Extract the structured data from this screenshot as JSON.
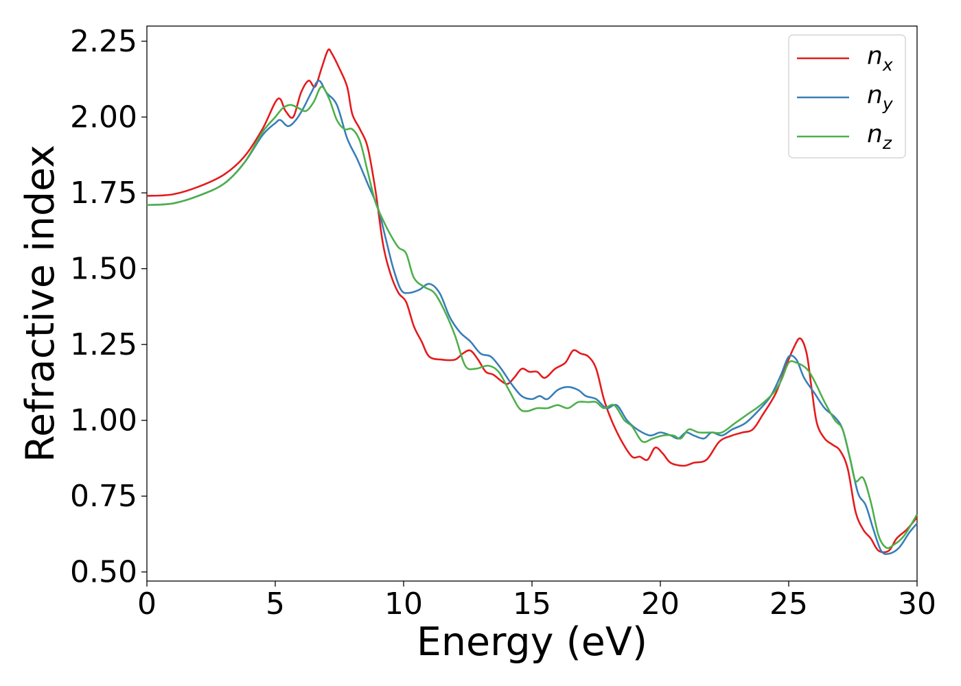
{
  "chart_data": {
    "type": "line",
    "xlabel": "Energy (eV)",
    "ylabel": "Refractive index",
    "xlim": [
      0,
      30
    ],
    "ylim": [
      0.47,
      2.3
    ],
    "xticks": [
      "0",
      "5",
      "10",
      "15",
      "20",
      "25",
      "30"
    ],
    "yticks": [
      "0.50",
      "0.75",
      "1.00",
      "1.25",
      "1.50",
      "1.75",
      "2.00",
      "2.25"
    ],
    "legend_position": "top-right",
    "grid": false,
    "series": [
      {
        "name": "n_x",
        "label_main": "n",
        "label_sub": "x",
        "color": "#e41a1c",
        "points": [
          [
            0,
            1.74
          ],
          [
            1,
            1.745
          ],
          [
            2,
            1.77
          ],
          [
            3,
            1.81
          ],
          [
            3.8,
            1.87
          ],
          [
            4.5,
            1.96
          ],
          [
            5.1,
            2.06
          ],
          [
            5.4,
            2.02
          ],
          [
            5.7,
            2.0
          ],
          [
            6.0,
            2.08
          ],
          [
            6.3,
            2.12
          ],
          [
            6.55,
            2.1
          ],
          [
            6.8,
            2.16
          ],
          [
            7.05,
            2.22
          ],
          [
            7.2,
            2.21
          ],
          [
            7.5,
            2.16
          ],
          [
            7.8,
            2.1
          ],
          [
            8.0,
            2.01
          ],
          [
            8.3,
            1.96
          ],
          [
            8.6,
            1.9
          ],
          [
            8.9,
            1.76
          ],
          [
            9.2,
            1.58
          ],
          [
            9.5,
            1.48
          ],
          [
            9.8,
            1.42
          ],
          [
            10.1,
            1.39
          ],
          [
            10.4,
            1.31
          ],
          [
            10.7,
            1.26
          ],
          [
            11.0,
            1.21
          ],
          [
            11.5,
            1.2
          ],
          [
            12.0,
            1.2
          ],
          [
            12.3,
            1.22
          ],
          [
            12.6,
            1.23
          ],
          [
            12.9,
            1.2
          ],
          [
            13.2,
            1.16
          ],
          [
            13.5,
            1.15
          ],
          [
            14.0,
            1.12
          ],
          [
            14.3,
            1.14
          ],
          [
            14.6,
            1.17
          ],
          [
            14.9,
            1.16
          ],
          [
            15.2,
            1.16
          ],
          [
            15.5,
            1.14
          ],
          [
            15.9,
            1.17
          ],
          [
            16.3,
            1.19
          ],
          [
            16.6,
            1.23
          ],
          [
            16.9,
            1.22
          ],
          [
            17.2,
            1.21
          ],
          [
            17.5,
            1.17
          ],
          [
            17.8,
            1.07
          ],
          [
            18.1,
            1.0
          ],
          [
            18.5,
            0.93
          ],
          [
            18.9,
            0.88
          ],
          [
            19.2,
            0.88
          ],
          [
            19.5,
            0.87
          ],
          [
            19.8,
            0.91
          ],
          [
            20.1,
            0.89
          ],
          [
            20.4,
            0.86
          ],
          [
            20.9,
            0.85
          ],
          [
            21.3,
            0.86
          ],
          [
            21.8,
            0.87
          ],
          [
            22.3,
            0.93
          ],
          [
            22.8,
            0.95
          ],
          [
            23.2,
            0.96
          ],
          [
            23.6,
            0.97
          ],
          [
            24.0,
            1.02
          ],
          [
            24.5,
            1.09
          ],
          [
            24.9,
            1.18
          ],
          [
            25.2,
            1.24
          ],
          [
            25.45,
            1.27
          ],
          [
            25.7,
            1.22
          ],
          [
            25.9,
            1.1
          ],
          [
            26.1,
            0.99
          ],
          [
            26.4,
            0.94
          ],
          [
            26.7,
            0.92
          ],
          [
            27.0,
            0.9
          ],
          [
            27.3,
            0.84
          ],
          [
            27.6,
            0.7
          ],
          [
            27.9,
            0.64
          ],
          [
            28.2,
            0.61
          ],
          [
            28.5,
            0.57
          ],
          [
            28.9,
            0.57
          ],
          [
            29.2,
            0.61
          ],
          [
            29.6,
            0.64
          ],
          [
            30.0,
            0.68
          ]
        ]
      },
      {
        "name": "n_y",
        "label_main": "n",
        "label_sub": "y",
        "color": "#377eb8",
        "points": [
          [
            0,
            1.71
          ],
          [
            1,
            1.715
          ],
          [
            2,
            1.74
          ],
          [
            3,
            1.78
          ],
          [
            3.8,
            1.85
          ],
          [
            4.5,
            1.94
          ],
          [
            5.0,
            1.98
          ],
          [
            5.2,
            1.99
          ],
          [
            5.5,
            1.97
          ],
          [
            5.8,
            1.99
          ],
          [
            6.1,
            2.03
          ],
          [
            6.4,
            2.08
          ],
          [
            6.7,
            2.12
          ],
          [
            7.0,
            2.08
          ],
          [
            7.4,
            2.04
          ],
          [
            7.8,
            1.93
          ],
          [
            8.2,
            1.86
          ],
          [
            8.6,
            1.78
          ],
          [
            9.0,
            1.7
          ],
          [
            9.3,
            1.6
          ],
          [
            9.6,
            1.5
          ],
          [
            9.9,
            1.43
          ],
          [
            10.2,
            1.42
          ],
          [
            10.6,
            1.43
          ],
          [
            11.0,
            1.45
          ],
          [
            11.4,
            1.42
          ],
          [
            11.8,
            1.34
          ],
          [
            12.2,
            1.29
          ],
          [
            12.6,
            1.26
          ],
          [
            13.0,
            1.22
          ],
          [
            13.4,
            1.21
          ],
          [
            13.8,
            1.17
          ],
          [
            14.2,
            1.12
          ],
          [
            14.6,
            1.08
          ],
          [
            15.0,
            1.07
          ],
          [
            15.3,
            1.08
          ],
          [
            15.6,
            1.07
          ],
          [
            16.0,
            1.1
          ],
          [
            16.4,
            1.11
          ],
          [
            16.8,
            1.1
          ],
          [
            17.1,
            1.08
          ],
          [
            17.5,
            1.07
          ],
          [
            17.9,
            1.04
          ],
          [
            18.3,
            1.05
          ],
          [
            18.7,
            1.0
          ],
          [
            19.1,
            0.97
          ],
          [
            19.6,
            0.95
          ],
          [
            20.0,
            0.96
          ],
          [
            20.4,
            0.95
          ],
          [
            20.7,
            0.94
          ],
          [
            21.0,
            0.96
          ],
          [
            21.3,
            0.95
          ],
          [
            21.7,
            0.94
          ],
          [
            22.0,
            0.96
          ],
          [
            22.4,
            0.95
          ],
          [
            22.8,
            0.97
          ],
          [
            23.3,
            0.99
          ],
          [
            23.8,
            1.03
          ],
          [
            24.3,
            1.08
          ],
          [
            24.7,
            1.15
          ],
          [
            25.0,
            1.21
          ],
          [
            25.3,
            1.2
          ],
          [
            25.6,
            1.14
          ],
          [
            26.0,
            1.09
          ],
          [
            26.4,
            1.04
          ],
          [
            26.8,
            1.01
          ],
          [
            27.1,
            0.97
          ],
          [
            27.4,
            0.87
          ],
          [
            27.7,
            0.76
          ],
          [
            28.0,
            0.72
          ],
          [
            28.3,
            0.64
          ],
          [
            28.6,
            0.57
          ],
          [
            28.9,
            0.56
          ],
          [
            29.3,
            0.58
          ],
          [
            29.7,
            0.63
          ],
          [
            30.0,
            0.66
          ]
        ]
      },
      {
        "name": "n_z",
        "label_main": "n",
        "label_sub": "z",
        "color": "#4daf4a",
        "points": [
          [
            0,
            1.71
          ],
          [
            1,
            1.715
          ],
          [
            2,
            1.74
          ],
          [
            3,
            1.78
          ],
          [
            3.8,
            1.85
          ],
          [
            4.5,
            1.95
          ],
          [
            5.0,
            2.0
          ],
          [
            5.3,
            2.03
          ],
          [
            5.6,
            2.04
          ],
          [
            5.9,
            2.03
          ],
          [
            6.2,
            2.02
          ],
          [
            6.5,
            2.05
          ],
          [
            6.8,
            2.1
          ],
          [
            7.1,
            2.06
          ],
          [
            7.4,
            1.99
          ],
          [
            7.7,
            1.96
          ],
          [
            8.0,
            1.96
          ],
          [
            8.3,
            1.92
          ],
          [
            8.6,
            1.82
          ],
          [
            8.9,
            1.72
          ],
          [
            9.2,
            1.66
          ],
          [
            9.5,
            1.61
          ],
          [
            9.8,
            1.57
          ],
          [
            10.1,
            1.55
          ],
          [
            10.4,
            1.47
          ],
          [
            10.8,
            1.44
          ],
          [
            11.2,
            1.42
          ],
          [
            11.6,
            1.36
          ],
          [
            12.0,
            1.28
          ],
          [
            12.4,
            1.18
          ],
          [
            12.8,
            1.17
          ],
          [
            13.3,
            1.18
          ],
          [
            13.7,
            1.16
          ],
          [
            14.1,
            1.1
          ],
          [
            14.5,
            1.04
          ],
          [
            14.8,
            1.03
          ],
          [
            15.2,
            1.04
          ],
          [
            15.6,
            1.04
          ],
          [
            16.0,
            1.05
          ],
          [
            16.4,
            1.04
          ],
          [
            16.8,
            1.06
          ],
          [
            17.2,
            1.06
          ],
          [
            17.5,
            1.06
          ],
          [
            17.8,
            1.04
          ],
          [
            18.2,
            1.05
          ],
          [
            18.6,
            1.0
          ],
          [
            18.9,
            0.98
          ],
          [
            19.3,
            0.93
          ],
          [
            19.7,
            0.94
          ],
          [
            20.1,
            0.95
          ],
          [
            20.5,
            0.95
          ],
          [
            20.8,
            0.94
          ],
          [
            21.1,
            0.97
          ],
          [
            21.5,
            0.96
          ],
          [
            22.0,
            0.96
          ],
          [
            22.4,
            0.96
          ],
          [
            22.9,
            0.99
          ],
          [
            23.4,
            1.02
          ],
          [
            23.9,
            1.05
          ],
          [
            24.4,
            1.09
          ],
          [
            24.7,
            1.13
          ],
          [
            25.0,
            1.19
          ],
          [
            25.3,
            1.19
          ],
          [
            25.7,
            1.17
          ],
          [
            26.0,
            1.13
          ],
          [
            26.4,
            1.06
          ],
          [
            26.8,
            1.0
          ],
          [
            27.1,
            0.97
          ],
          [
            27.4,
            0.87
          ],
          [
            27.6,
            0.8
          ],
          [
            27.9,
            0.81
          ],
          [
            28.2,
            0.73
          ],
          [
            28.5,
            0.62
          ],
          [
            28.8,
            0.58
          ],
          [
            29.1,
            0.59
          ],
          [
            29.5,
            0.62
          ],
          [
            30.0,
            0.69
          ]
        ]
      }
    ]
  }
}
